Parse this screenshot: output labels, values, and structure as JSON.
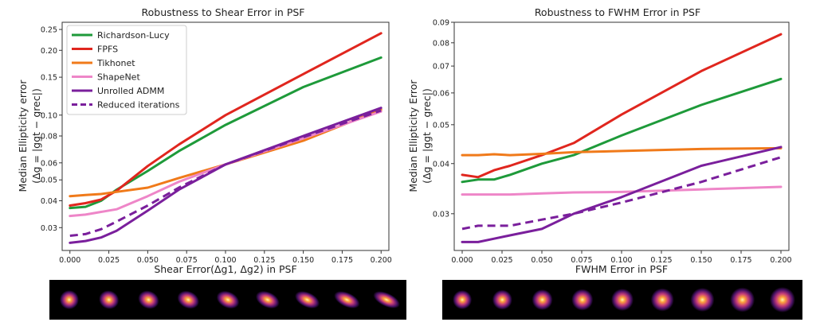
{
  "colors": {
    "Richardson-Lucy": "#1e9a3a",
    "FPFS": "#e0261e",
    "Tikhonet": "#f07a1a",
    "ShapeNet": "#ee86c8",
    "Unrolled ADMM": "#7a1f9c",
    "Reduced iterations": "#7a1f9c",
    "psf_strip_background": "#000000"
  },
  "legend": {
    "entries": [
      {
        "label": "Richardson-Lucy",
        "key": "Richardson-Lucy",
        "dashed": false
      },
      {
        "label": "FPFS",
        "key": "FPFS",
        "dashed": false
      },
      {
        "label": "Tikhonet",
        "key": "Tikhonet",
        "dashed": false
      },
      {
        "label": "ShapeNet",
        "key": "ShapeNet",
        "dashed": false
      },
      {
        "label": "Unrolled ADMM",
        "key": "Unrolled ADMM",
        "dashed": false
      },
      {
        "label": "Reduced iterations",
        "key": "Reduced iterations",
        "dashed": true
      }
    ],
    "placement": "upper-left of left panel"
  },
  "chart_data": [
    {
      "type": "line",
      "title": "Robustness to Shear Error in PSF",
      "xlabel": "Shear Error(Δg1, Δg2) in PSF",
      "ylabel": "Median Ellipticity error",
      "ylabel2": "(Δg = |ggt − grec|)",
      "yscale": "log",
      "xlim": [
        -0.005,
        0.205
      ],
      "ylim": [
        0.0235,
        0.27
      ],
      "xticks": [
        "0.000",
        "0.025",
        "0.050",
        "0.075",
        "0.100",
        "0.125",
        "0.150",
        "0.175",
        "0.200"
      ],
      "yticks": [
        {
          "v": 0.03,
          "label": "0.03"
        },
        {
          "v": 0.04,
          "label": "0.04"
        },
        {
          "v": 0.05,
          "label": "0.05"
        },
        {
          "v": 0.06,
          "label": "0.06"
        },
        {
          "v": 0.08,
          "label": "0.08"
        },
        {
          "v": 0.1,
          "label": "0.10"
        },
        {
          "v": 0.15,
          "label": "0.15"
        },
        {
          "v": 0.2,
          "label": "0.20"
        },
        {
          "v": 0.25,
          "label": "0.25"
        }
      ],
      "x": [
        0.0,
        0.01,
        0.02,
        0.03,
        0.05,
        0.07,
        0.1,
        0.15,
        0.2
      ],
      "series": [
        {
          "name": "Richardson-Lucy",
          "values": [
            0.037,
            0.0375,
            0.04,
            0.045,
            0.055,
            0.068,
            0.09,
            0.135,
            0.185
          ]
        },
        {
          "name": "FPFS",
          "values": [
            0.038,
            0.039,
            0.0405,
            0.0445,
            0.058,
            0.073,
            0.1,
            0.155,
            0.24
          ]
        },
        {
          "name": "Tikhonet",
          "values": [
            0.042,
            0.0425,
            0.043,
            0.044,
            0.046,
            0.051,
            0.059,
            0.076,
            0.106
          ]
        },
        {
          "name": "ShapeNet",
          "values": [
            0.034,
            0.0345,
            0.0355,
            0.0365,
            0.042,
            0.049,
            0.059,
            0.078,
            0.104
          ]
        },
        {
          "name": "Unrolled ADMM",
          "values": [
            0.0255,
            0.026,
            0.027,
            0.029,
            0.036,
            0.045,
            0.059,
            0.08,
            0.108
          ]
        },
        {
          "name": "Reduced iterations",
          "values": [
            0.0275,
            0.028,
            0.0295,
            0.032,
            0.038,
            0.046,
            0.059,
            0.079,
            0.105
          ]
        }
      ],
      "psf_strip": [
        {
          "e1": 0.0
        },
        {
          "e1": 0.025
        },
        {
          "e1": 0.05
        },
        {
          "e1": 0.075
        },
        {
          "e1": 0.1
        },
        {
          "e1": 0.125
        },
        {
          "e1": 0.15
        },
        {
          "e1": 0.175
        },
        {
          "e1": 0.2
        }
      ]
    },
    {
      "type": "line",
      "title": "Robustness to FWHM Error in PSF",
      "xlabel": "FWHM Error in PSF",
      "ylabel": "Median Ellipticity Error",
      "ylabel2": "(Δg = |ggt − grec|)",
      "yscale": "log",
      "xlim": [
        -0.005,
        0.205
      ],
      "ylim": [
        0.0243,
        0.09
      ],
      "xticks": [
        "0.000",
        "0.025",
        "0.050",
        "0.075",
        "0.100",
        "0.125",
        "0.150",
        "0.175",
        "0.200"
      ],
      "yticks": [
        {
          "v": 0.03,
          "label": "0.03"
        },
        {
          "v": 0.04,
          "label": "0.04"
        },
        {
          "v": 0.05,
          "label": "0.05"
        },
        {
          "v": 0.06,
          "label": "0.06"
        },
        {
          "v": 0.07,
          "label": "0.07"
        },
        {
          "v": 0.08,
          "label": "0.08"
        },
        {
          "v": 0.09,
          "label": "0.09"
        }
      ],
      "x": [
        0.0,
        0.01,
        0.02,
        0.03,
        0.05,
        0.07,
        0.1,
        0.15,
        0.2
      ],
      "series": [
        {
          "name": "Richardson-Lucy",
          "values": [
            0.036,
            0.0365,
            0.0365,
            0.0375,
            0.04,
            0.042,
            0.047,
            0.056,
            0.065
          ]
        },
        {
          "name": "FPFS",
          "values": [
            0.0375,
            0.037,
            0.0385,
            0.0395,
            0.042,
            0.045,
            0.053,
            0.068,
            0.084
          ]
        },
        {
          "name": "Tikhonet",
          "values": [
            0.042,
            0.042,
            0.0422,
            0.042,
            0.0423,
            0.0427,
            0.043,
            0.0435,
            0.0437
          ]
        },
        {
          "name": "ShapeNet",
          "values": [
            0.0335,
            0.0335,
            0.0335,
            0.0335,
            0.0337,
            0.0339,
            0.034,
            0.0345,
            0.035
          ]
        },
        {
          "name": "Unrolled ADMM",
          "values": [
            0.0255,
            0.0255,
            0.026,
            0.0265,
            0.0275,
            0.03,
            0.033,
            0.0395,
            0.044
          ]
        },
        {
          "name": "Reduced iterations",
          "values": [
            0.0275,
            0.028,
            0.028,
            0.028,
            0.029,
            0.03,
            0.032,
            0.036,
            0.0415
          ]
        }
      ],
      "psf_strip": [
        {
          "fwhm": 0.0
        },
        {
          "fwhm": 0.025
        },
        {
          "fwhm": 0.05
        },
        {
          "fwhm": 0.075
        },
        {
          "fwhm": 0.1
        },
        {
          "fwhm": 0.125
        },
        {
          "fwhm": 0.15
        },
        {
          "fwhm": 0.175
        },
        {
          "fwhm": 0.2
        }
      ]
    }
  ]
}
